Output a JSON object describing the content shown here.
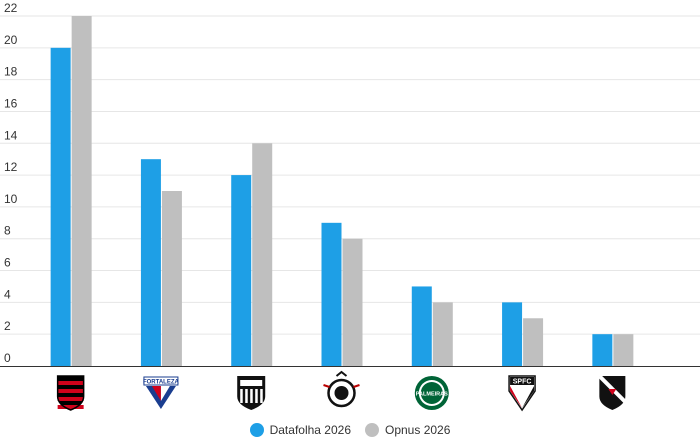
{
  "chart_data": {
    "type": "bar",
    "categories": [
      "Flamengo",
      "Fortaleza",
      "Ceará",
      "Corinthians",
      "Palmeiras",
      "São Paulo",
      "Vasco"
    ],
    "series": [
      {
        "name": "Datafolha 2026",
        "values": [
          20,
          13,
          12,
          9,
          5,
          4,
          2
        ],
        "color": "#1e9fe6"
      },
      {
        "name": "Opnus 2026",
        "values": [
          22,
          11,
          14,
          8,
          4,
          3,
          2
        ],
        "color": "#bfbfbf"
      }
    ],
    "ylim": [
      0,
      22
    ],
    "yticks": [
      0,
      2,
      4,
      6,
      8,
      10,
      12,
      14,
      16,
      18,
      20,
      22
    ],
    "grid": true,
    "legend_position": "bottom-center",
    "crest_icons": [
      "flamengo-crest-icon",
      "fortaleza-crest-icon",
      "ceara-crest-icon",
      "corinthians-crest-icon",
      "palmeiras-crest-icon",
      "sao-paulo-crest-icon",
      "vasco-crest-icon"
    ],
    "crest_texts": {
      "fortaleza": "FORTALEZA",
      "palmeiras": "PALMEIRAS",
      "sao_paulo": "SPFC"
    }
  }
}
